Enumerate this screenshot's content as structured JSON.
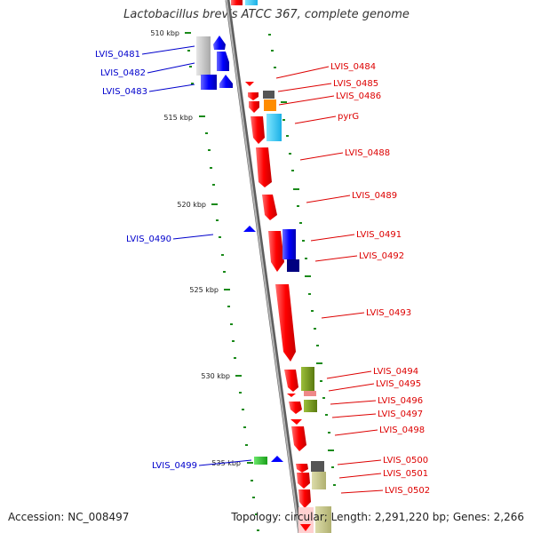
{
  "title": "Lactobacillus brevis ATCC 367, complete genome",
  "accession": "Accession: NC_008497",
  "summary": "Topology: circular; Length: 2,291,220 bp; Genes: 2,266",
  "kbp_marks": [
    "510 kbp",
    "515 kbp",
    "520 kbp",
    "525 kbp",
    "530 kbp",
    "535 kbp"
  ],
  "left_labels": [
    "LVIS_0481",
    "LVIS_0482",
    "LVIS_0483",
    "LVIS_0490",
    "LVIS_0499"
  ],
  "right_labels": [
    "LVIS_0484",
    "LVIS_0485",
    "LVIS_0486",
    "pyrG",
    "LVIS_0488",
    "LVIS_0489",
    "LVIS_0491",
    "LVIS_0492",
    "LVIS_0493",
    "LVIS_0494",
    "LVIS_0495",
    "LVIS_0496",
    "LVIS_0497",
    "LVIS_0498",
    "LVIS_0500",
    "LVIS_0501",
    "LVIS_0502"
  ],
  "colors": {
    "backbone": "#8a8a8a",
    "forward_gene": "#ff1a1a",
    "reverse_gene": "#0a14ff",
    "label_left": "#0000cc",
    "label_right": "#dd0000",
    "tick": "#1a8a1a"
  }
}
